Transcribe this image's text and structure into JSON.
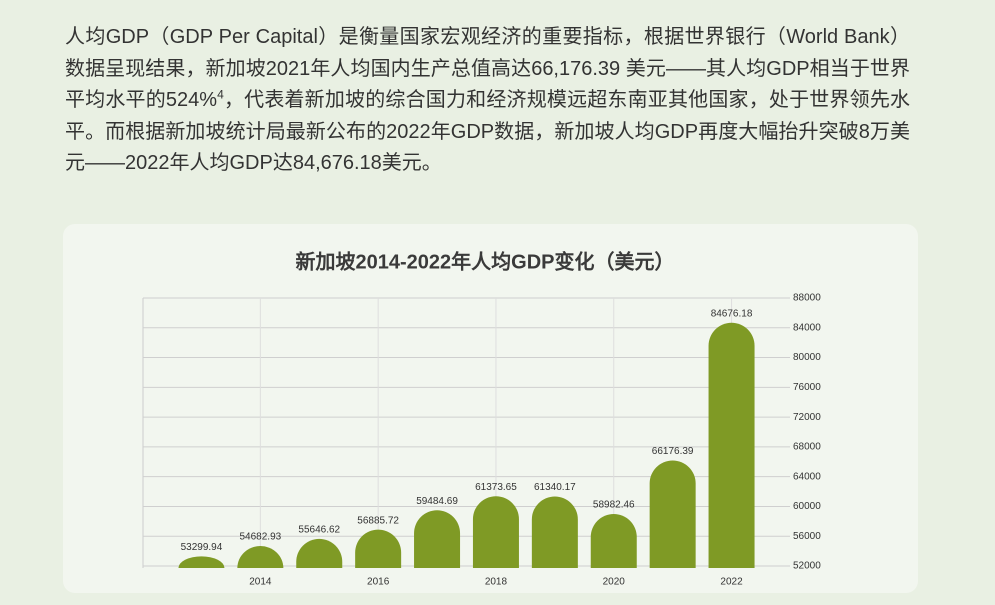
{
  "paragraph": [
    "人均GDP（GDP Per Capital）是衡量国家宏观经济的重要指标，根据世界银行（World Bank）数据呈现结果，新加坡2021年人均国内生产总值高达66,176.39 美元——其人均GDP相当于世界平均水平的524%",
    "4",
    "，代表着新加坡的综合国力和经济规模远超东南亚其他国家，处于世界领先水平。而根据新加坡统计局最新公布的2022年GDP数据，新加坡人均GDP再度大幅抬升突破8万美元——2022年人均GDP达84,676.18美元。"
  ],
  "chart_data": {
    "type": "bar",
    "title": "新加坡2014-2022年人均GDP变化（美元）",
    "categories": [
      null,
      "2014",
      null,
      "2016",
      null,
      "2018",
      null,
      "2020",
      null,
      "2022"
    ],
    "values": [
      53299.94,
      54682.93,
      55646.62,
      56885.72,
      59484.69,
      61373.65,
      61340.17,
      58982.46,
      66176.39,
      84676.18
    ],
    "color": "#7f9a25",
    "ylim": [
      52000,
      88000
    ],
    "yticks": [
      52000,
      56000,
      60000,
      64000,
      68000,
      72000,
      76000,
      80000,
      84000,
      88000
    ],
    "grid": true
  }
}
